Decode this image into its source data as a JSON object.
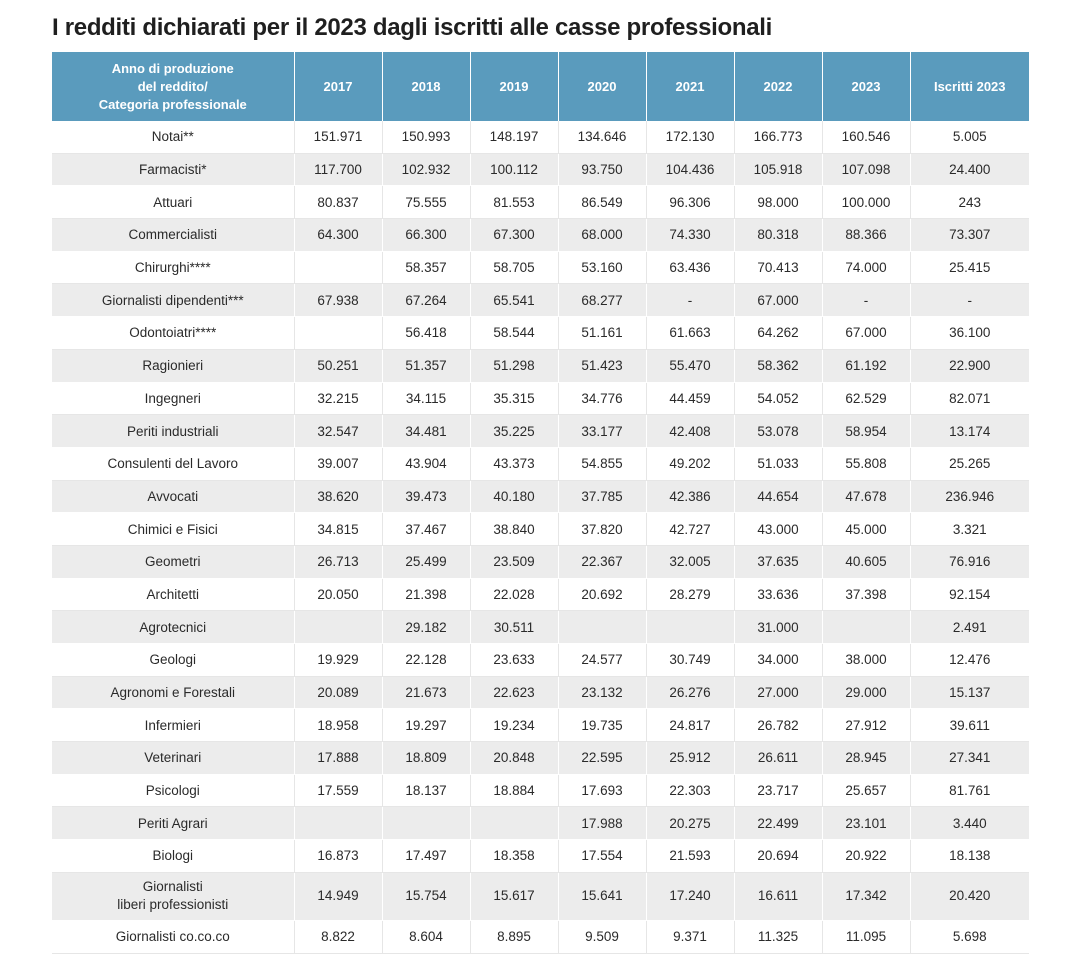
{
  "title": "I redditi dichiarati per il 2023 dagli iscritti alle casse professionali",
  "table": {
    "header": {
      "category_lines": [
        "Anno di produzione",
        "del reddito/",
        "Categoria professionale"
      ],
      "years": [
        "2017",
        "2018",
        "2019",
        "2020",
        "2021",
        "2022",
        "2023"
      ],
      "members": "Iscritti 2023"
    },
    "rows": [
      {
        "lines": [
          "Notai**"
        ],
        "values": [
          "151.971",
          "150.993",
          "148.197",
          "134.646",
          "172.130",
          "166.773",
          "160.546",
          "5.005"
        ]
      },
      {
        "lines": [
          "Farmacisti*"
        ],
        "values": [
          "117.700",
          "102.932",
          "100.112",
          "93.750",
          "104.436",
          "105.918",
          "107.098",
          "24.400"
        ]
      },
      {
        "lines": [
          "Attuari"
        ],
        "values": [
          "80.837",
          "75.555",
          "81.553",
          "86.549",
          "96.306",
          "98.000",
          "100.000",
          "243"
        ]
      },
      {
        "lines": [
          "Commercialisti"
        ],
        "values": [
          "64.300",
          "66.300",
          "67.300",
          "68.000",
          "74.330",
          "80.318",
          "88.366",
          "73.307"
        ]
      },
      {
        "lines": [
          "Chirurghi****"
        ],
        "values": [
          "",
          "58.357",
          "58.705",
          "53.160",
          "63.436",
          "70.413",
          "74.000",
          "25.415"
        ]
      },
      {
        "lines": [
          "Giornalisti dipendenti***"
        ],
        "values": [
          "67.938",
          "67.264",
          "65.541",
          "68.277",
          "-",
          "67.000",
          "-",
          "-"
        ]
      },
      {
        "lines": [
          "Odontoiatri****"
        ],
        "values": [
          "",
          "56.418",
          "58.544",
          "51.161",
          "61.663",
          "64.262",
          "67.000",
          "36.100"
        ]
      },
      {
        "lines": [
          "Ragionieri"
        ],
        "values": [
          "50.251",
          "51.357",
          "51.298",
          "51.423",
          "55.470",
          "58.362",
          "61.192",
          "22.900"
        ]
      },
      {
        "lines": [
          "Ingegneri"
        ],
        "values": [
          "32.215",
          "34.115",
          "35.315",
          "34.776",
          "44.459",
          "54.052",
          "62.529",
          "82.071"
        ]
      },
      {
        "lines": [
          "Periti industriali"
        ],
        "values": [
          "32.547",
          "34.481",
          "35.225",
          "33.177",
          "42.408",
          "53.078",
          "58.954",
          "13.174"
        ]
      },
      {
        "lines": [
          "Consulenti del Lavoro"
        ],
        "values": [
          "39.007",
          "43.904",
          "43.373",
          "54.855",
          "49.202",
          "51.033",
          "55.808",
          "25.265"
        ]
      },
      {
        "lines": [
          "Avvocati"
        ],
        "values": [
          "38.620",
          "39.473",
          "40.180",
          "37.785",
          "42.386",
          "44.654",
          "47.678",
          "236.946"
        ]
      },
      {
        "lines": [
          "Chimici e Fisici"
        ],
        "values": [
          "34.815",
          "37.467",
          "38.840",
          "37.820",
          "42.727",
          "43.000",
          "45.000",
          "3.321"
        ]
      },
      {
        "lines": [
          "Geometri"
        ],
        "values": [
          "26.713",
          "25.499",
          "23.509",
          "22.367",
          "32.005",
          "37.635",
          "40.605",
          "76.916"
        ]
      },
      {
        "lines": [
          "Architetti"
        ],
        "values": [
          "20.050",
          "21.398",
          "22.028",
          "20.692",
          "28.279",
          "33.636",
          "37.398",
          "92.154"
        ]
      },
      {
        "lines": [
          "Agrotecnici"
        ],
        "values": [
          "",
          "29.182",
          "30.511",
          "",
          "",
          "31.000",
          "",
          "2.491"
        ]
      },
      {
        "lines": [
          "Geologi"
        ],
        "values": [
          "19.929",
          "22.128",
          "23.633",
          "24.577",
          "30.749",
          "34.000",
          "38.000",
          "12.476"
        ]
      },
      {
        "lines": [
          "Agronomi e Forestali"
        ],
        "values": [
          "20.089",
          "21.673",
          "22.623",
          "23.132",
          "26.276",
          "27.000",
          "29.000",
          "15.137"
        ]
      },
      {
        "lines": [
          "Infermieri"
        ],
        "values": [
          "18.958",
          "19.297",
          "19.234",
          "19.735",
          "24.817",
          "26.782",
          "27.912",
          "39.611"
        ]
      },
      {
        "lines": [
          "Veterinari"
        ],
        "values": [
          "17.888",
          "18.809",
          "20.848",
          "22.595",
          "25.912",
          "26.611",
          "28.945",
          "27.341"
        ]
      },
      {
        "lines": [
          "Psicologi"
        ],
        "values": [
          "17.559",
          "18.137",
          "18.884",
          "17.693",
          "22.303",
          "23.717",
          "25.657",
          "81.761"
        ]
      },
      {
        "lines": [
          "Periti Agrari"
        ],
        "values": [
          "",
          "",
          "",
          "17.988",
          "20.275",
          "22.499",
          "23.101",
          "3.440"
        ]
      },
      {
        "lines": [
          "Biologi"
        ],
        "values": [
          "16.873",
          "17.497",
          "18.358",
          "17.554",
          "21.593",
          "20.694",
          "20.922",
          "18.138"
        ]
      },
      {
        "lines": [
          "Giornalisti",
          "liberi professionisti"
        ],
        "values": [
          "14.949",
          "15.754",
          "15.617",
          "15.641",
          "17.240",
          "16.611",
          "17.342",
          "20.420"
        ]
      },
      {
        "lines": [
          "Giornalisti co.co.co"
        ],
        "values": [
          "8.822",
          "8.604",
          "8.895",
          "9.509",
          "9.371",
          "11.325",
          "11.095",
          "5.698"
        ]
      }
    ]
  }
}
